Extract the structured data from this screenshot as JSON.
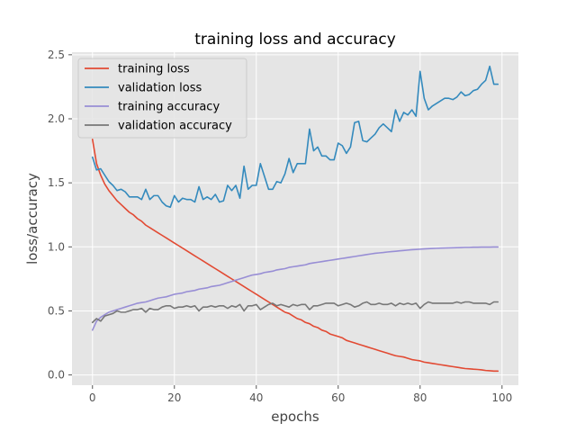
{
  "chart_data": {
    "type": "line",
    "title": "training loss and accuracy",
    "xlabel": "epochs",
    "ylabel": "loss/accuracy",
    "xlim": [
      -5,
      104
    ],
    "ylim": [
      -0.08,
      2.52
    ],
    "xticks": [
      0,
      20,
      40,
      60,
      80,
      100
    ],
    "yticks": [
      0.0,
      0.5,
      1.0,
      1.5,
      2.0,
      2.5
    ],
    "ytick_labels": [
      "0.0",
      "0.5",
      "1.0",
      "1.5",
      "2.0",
      "2.5"
    ],
    "grid": true,
    "legend_position": "top-left",
    "background_color": "#e5e5e5",
    "series": [
      {
        "name": "training loss",
        "color": "#e24a33",
        "x": [
          0,
          1,
          2,
          3,
          4,
          5,
          6,
          7,
          8,
          9,
          10,
          11,
          12,
          13,
          14,
          15,
          16,
          17,
          18,
          19,
          20,
          21,
          22,
          23,
          24,
          25,
          26,
          27,
          28,
          29,
          30,
          31,
          32,
          33,
          34,
          35,
          36,
          37,
          38,
          39,
          40,
          41,
          42,
          43,
          44,
          45,
          46,
          47,
          48,
          49,
          50,
          51,
          52,
          53,
          54,
          55,
          56,
          57,
          58,
          59,
          60,
          61,
          62,
          63,
          64,
          65,
          66,
          67,
          68,
          69,
          70,
          71,
          72,
          73,
          74,
          75,
          76,
          77,
          78,
          79,
          80,
          81,
          82,
          83,
          84,
          85,
          86,
          87,
          88,
          89,
          90,
          91,
          92,
          93,
          94,
          95,
          96,
          97,
          98,
          99
        ],
        "values": [
          1.84,
          1.65,
          1.56,
          1.49,
          1.44,
          1.4,
          1.36,
          1.33,
          1.3,
          1.27,
          1.25,
          1.22,
          1.2,
          1.17,
          1.15,
          1.13,
          1.11,
          1.09,
          1.07,
          1.05,
          1.03,
          1.01,
          0.99,
          0.97,
          0.95,
          0.93,
          0.91,
          0.89,
          0.87,
          0.85,
          0.83,
          0.81,
          0.79,
          0.77,
          0.75,
          0.73,
          0.71,
          0.69,
          0.67,
          0.65,
          0.63,
          0.61,
          0.59,
          0.57,
          0.55,
          0.53,
          0.51,
          0.49,
          0.48,
          0.46,
          0.44,
          0.43,
          0.41,
          0.4,
          0.38,
          0.37,
          0.35,
          0.34,
          0.32,
          0.31,
          0.3,
          0.29,
          0.27,
          0.26,
          0.25,
          0.24,
          0.23,
          0.22,
          0.21,
          0.2,
          0.19,
          0.18,
          0.17,
          0.16,
          0.15,
          0.145,
          0.14,
          0.13,
          0.12,
          0.115,
          0.11,
          0.1,
          0.095,
          0.09,
          0.085,
          0.08,
          0.075,
          0.07,
          0.065,
          0.06,
          0.055,
          0.05,
          0.048,
          0.045,
          0.043,
          0.04,
          0.035,
          0.033,
          0.03,
          0.03
        ]
      },
      {
        "name": "validation loss",
        "color": "#348abd",
        "x": [
          0,
          1,
          2,
          3,
          4,
          5,
          6,
          7,
          8,
          9,
          10,
          11,
          12,
          13,
          14,
          15,
          16,
          17,
          18,
          19,
          20,
          21,
          22,
          23,
          24,
          25,
          26,
          27,
          28,
          29,
          30,
          31,
          32,
          33,
          34,
          35,
          36,
          37,
          38,
          39,
          40,
          41,
          42,
          43,
          44,
          45,
          46,
          47,
          48,
          49,
          50,
          51,
          52,
          53,
          54,
          55,
          56,
          57,
          58,
          59,
          60,
          61,
          62,
          63,
          64,
          65,
          66,
          67,
          68,
          69,
          70,
          71,
          72,
          73,
          74,
          75,
          76,
          77,
          78,
          79,
          80,
          81,
          82,
          83,
          84,
          85,
          86,
          87,
          88,
          89,
          90,
          91,
          92,
          93,
          94,
          95,
          96,
          97,
          98,
          99
        ],
        "values": [
          1.7,
          1.6,
          1.61,
          1.56,
          1.51,
          1.48,
          1.44,
          1.45,
          1.43,
          1.39,
          1.39,
          1.39,
          1.37,
          1.45,
          1.37,
          1.4,
          1.4,
          1.35,
          1.32,
          1.31,
          1.4,
          1.35,
          1.38,
          1.37,
          1.37,
          1.35,
          1.47,
          1.37,
          1.39,
          1.37,
          1.41,
          1.35,
          1.36,
          1.48,
          1.44,
          1.48,
          1.38,
          1.63,
          1.45,
          1.48,
          1.48,
          1.65,
          1.55,
          1.45,
          1.45,
          1.51,
          1.5,
          1.57,
          1.69,
          1.58,
          1.65,
          1.65,
          1.65,
          1.92,
          1.75,
          1.78,
          1.71,
          1.71,
          1.68,
          1.68,
          1.81,
          1.79,
          1.73,
          1.78,
          1.97,
          1.98,
          1.83,
          1.82,
          1.85,
          1.88,
          1.93,
          1.96,
          1.93,
          1.9,
          2.07,
          1.98,
          2.05,
          2.03,
          2.07,
          2.02,
          2.37,
          2.16,
          2.07,
          2.1,
          2.12,
          2.14,
          2.16,
          2.16,
          2.15,
          2.17,
          2.21,
          2.18,
          2.19,
          2.22,
          2.23,
          2.27,
          2.3,
          2.41,
          2.27,
          2.27
        ]
      },
      {
        "name": "training accuracy",
        "color": "#988ed5",
        "x": [
          0,
          1,
          2,
          3,
          4,
          5,
          6,
          7,
          8,
          9,
          10,
          11,
          12,
          13,
          14,
          15,
          16,
          17,
          18,
          19,
          20,
          21,
          22,
          23,
          24,
          25,
          26,
          27,
          28,
          29,
          30,
          31,
          32,
          33,
          34,
          35,
          36,
          37,
          38,
          39,
          40,
          41,
          42,
          43,
          44,
          45,
          46,
          47,
          48,
          49,
          50,
          51,
          52,
          53,
          54,
          55,
          56,
          57,
          58,
          59,
          60,
          61,
          62,
          63,
          64,
          65,
          66,
          67,
          68,
          69,
          70,
          71,
          72,
          73,
          74,
          75,
          76,
          77,
          78,
          79,
          80,
          81,
          82,
          83,
          84,
          85,
          86,
          87,
          88,
          89,
          90,
          91,
          92,
          93,
          94,
          95,
          96,
          97,
          98,
          99
        ],
        "values": [
          0.35,
          0.42,
          0.45,
          0.47,
          0.49,
          0.5,
          0.51,
          0.52,
          0.53,
          0.54,
          0.55,
          0.56,
          0.565,
          0.57,
          0.58,
          0.59,
          0.6,
          0.605,
          0.61,
          0.62,
          0.63,
          0.635,
          0.64,
          0.65,
          0.655,
          0.66,
          0.67,
          0.675,
          0.68,
          0.69,
          0.695,
          0.7,
          0.71,
          0.72,
          0.73,
          0.74,
          0.75,
          0.76,
          0.77,
          0.78,
          0.785,
          0.79,
          0.8,
          0.805,
          0.81,
          0.82,
          0.825,
          0.83,
          0.84,
          0.845,
          0.85,
          0.855,
          0.86,
          0.87,
          0.875,
          0.88,
          0.885,
          0.89,
          0.895,
          0.9,
          0.905,
          0.91,
          0.915,
          0.92,
          0.925,
          0.93,
          0.935,
          0.94,
          0.945,
          0.95,
          0.953,
          0.956,
          0.96,
          0.963,
          0.966,
          0.969,
          0.972,
          0.975,
          0.978,
          0.98,
          0.982,
          0.984,
          0.986,
          0.988,
          0.989,
          0.99,
          0.991,
          0.992,
          0.993,
          0.994,
          0.995,
          0.996,
          0.996,
          0.997,
          0.997,
          0.998,
          0.998,
          0.998,
          0.999,
          0.999
        ]
      },
      {
        "name": "validation accuracy",
        "color": "#777777",
        "x": [
          0,
          1,
          2,
          3,
          4,
          5,
          6,
          7,
          8,
          9,
          10,
          11,
          12,
          13,
          14,
          15,
          16,
          17,
          18,
          19,
          20,
          21,
          22,
          23,
          24,
          25,
          26,
          27,
          28,
          29,
          30,
          31,
          32,
          33,
          34,
          35,
          36,
          37,
          38,
          39,
          40,
          41,
          42,
          43,
          44,
          45,
          46,
          47,
          48,
          49,
          50,
          51,
          52,
          53,
          54,
          55,
          56,
          57,
          58,
          59,
          60,
          61,
          62,
          63,
          64,
          65,
          66,
          67,
          68,
          69,
          70,
          71,
          72,
          73,
          74,
          75,
          76,
          77,
          78,
          79,
          80,
          81,
          82,
          83,
          84,
          85,
          86,
          87,
          88,
          89,
          90,
          91,
          92,
          93,
          94,
          95,
          96,
          97,
          98,
          99
        ],
        "values": [
          0.41,
          0.44,
          0.42,
          0.46,
          0.47,
          0.48,
          0.5,
          0.49,
          0.49,
          0.5,
          0.51,
          0.51,
          0.52,
          0.49,
          0.52,
          0.51,
          0.51,
          0.53,
          0.54,
          0.54,
          0.52,
          0.53,
          0.53,
          0.54,
          0.53,
          0.54,
          0.5,
          0.53,
          0.53,
          0.54,
          0.53,
          0.54,
          0.54,
          0.52,
          0.54,
          0.53,
          0.55,
          0.5,
          0.54,
          0.54,
          0.55,
          0.51,
          0.53,
          0.55,
          0.56,
          0.54,
          0.55,
          0.54,
          0.53,
          0.55,
          0.54,
          0.55,
          0.55,
          0.51,
          0.54,
          0.54,
          0.55,
          0.56,
          0.56,
          0.56,
          0.54,
          0.55,
          0.56,
          0.55,
          0.53,
          0.54,
          0.56,
          0.57,
          0.55,
          0.55,
          0.56,
          0.55,
          0.55,
          0.56,
          0.54,
          0.56,
          0.55,
          0.56,
          0.55,
          0.56,
          0.52,
          0.55,
          0.57,
          0.56,
          0.56,
          0.56,
          0.56,
          0.56,
          0.56,
          0.57,
          0.56,
          0.57,
          0.57,
          0.56,
          0.56,
          0.56,
          0.56,
          0.55,
          0.57,
          0.57
        ]
      }
    ]
  }
}
